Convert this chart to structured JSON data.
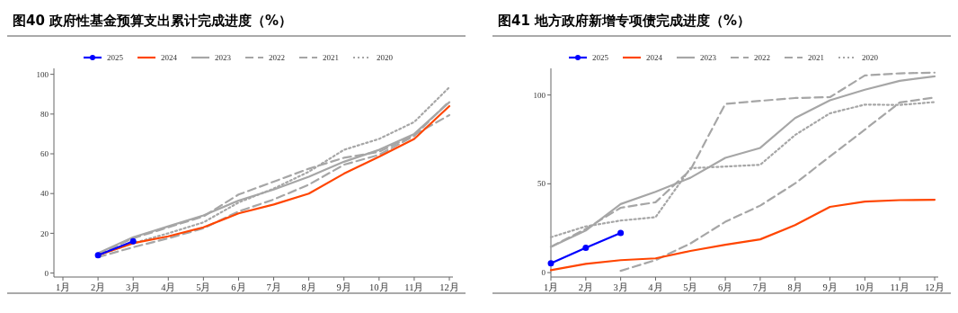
{
  "chart_data": [
    {
      "type": "line",
      "title": "图40 政府性基金预算支出累计完成进度（%）",
      "categories": [
        "1月",
        "2月",
        "3月",
        "4月",
        "5月",
        "6月",
        "7月",
        "8月",
        "9月",
        "10月",
        "11月",
        "12月"
      ],
      "ylim": [
        -2,
        103
      ],
      "yticks": [
        0,
        20,
        40,
        60,
        80,
        100
      ],
      "legend": "top",
      "grid": false,
      "series": [
        {
          "name": "2025",
          "color": "#0000ff",
          "marker": "circle",
          "line_style": "solid",
          "values": [
            null,
            9,
            16,
            null,
            null,
            null,
            null,
            null,
            null,
            null,
            null,
            null
          ]
        },
        {
          "name": "2024",
          "color": "#ff4500",
          "marker": "none",
          "line_style": "solid",
          "values": [
            null,
            9,
            15,
            18.5,
            23,
            30,
            34.5,
            40,
            50,
            58.5,
            67.5,
            84
          ]
        },
        {
          "name": "2023",
          "color": "#a6a6a6",
          "marker": "none",
          "line_style": "solid",
          "values": [
            null,
            10,
            18,
            23.5,
            29,
            36.5,
            42,
            48.5,
            56,
            62,
            70,
            86
          ]
        },
        {
          "name": "2022",
          "color": "#a6a6a6",
          "marker": "none",
          "line_style": "dashed",
          "values": [
            null,
            9.5,
            17.5,
            23,
            28.5,
            39.5,
            46,
            52.5,
            58,
            61,
            69.5,
            79.5
          ]
        },
        {
          "name": "2021",
          "color": "#a6a6a6",
          "marker": "none",
          "line_style": "dashed",
          "values": [
            null,
            8,
            13,
            17.5,
            22.5,
            31,
            37,
            44.5,
            54.5,
            59.5,
            69,
            86.5
          ]
        },
        {
          "name": "2020",
          "color": "#a6a6a6",
          "marker": "none",
          "line_style": "dotted",
          "values": [
            null,
            9,
            15,
            20,
            25.5,
            35.5,
            42.5,
            51,
            62,
            67.5,
            76,
            93.5
          ]
        }
      ]
    },
    {
      "type": "line",
      "title": "图41 地方政府新增专项债完成进度（%）",
      "categories": [
        "1月",
        "2月",
        "3月",
        "4月",
        "5月",
        "6月",
        "7月",
        "8月",
        "9月",
        "10月",
        "11月",
        "12月"
      ],
      "ylim": [
        -2.5,
        115
      ],
      "yticks": [
        0,
        50,
        100
      ],
      "legend": "top",
      "grid": false,
      "series": [
        {
          "name": "2025",
          "color": "#0000ff",
          "marker": "circle",
          "line_style": "solid",
          "values": [
            5.2,
            14,
            22.3,
            null,
            null,
            null,
            null,
            null,
            null,
            null,
            null,
            null
          ]
        },
        {
          "name": "2024",
          "color": "#ff4500",
          "marker": "none",
          "line_style": "solid",
          "values": [
            1.4,
            4.9,
            7,
            8,
            12.2,
            15.7,
            18.7,
            26.7,
            37,
            40,
            40.8,
            41
          ]
        },
        {
          "name": "2023",
          "color": "#a6a6a6",
          "marker": "none",
          "line_style": "solid",
          "values": [
            14.5,
            23.7,
            38.6,
            45.5,
            53.4,
            64.6,
            70.2,
            87,
            97,
            103,
            108,
            110.5
          ]
        },
        {
          "name": "2022",
          "color": "#a6a6a6",
          "marker": "none",
          "line_style": "dashed",
          "values": [
            14.5,
            24.6,
            36.5,
            39.6,
            57.8,
            95,
            96.7,
            98.3,
            98.8,
            111,
            112.2,
            112.6
          ]
        },
        {
          "name": "2021",
          "color": "#a6a6a6",
          "marker": "none",
          "line_style": "dashed",
          "values": [
            null,
            null,
            1,
            7,
            16.4,
            28.6,
            37.7,
            50.2,
            65.4,
            80.5,
            95.8,
            98.6
          ]
        },
        {
          "name": "2020",
          "color": "#a6a6a6",
          "marker": "none",
          "line_style": "dotted",
          "values": [
            19.9,
            26,
            29.3,
            31.2,
            58.8,
            59.7,
            60.7,
            77.5,
            89.7,
            94.6,
            94.4,
            96
          ]
        }
      ]
    }
  ]
}
